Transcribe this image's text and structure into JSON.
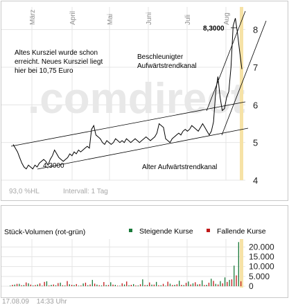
{
  "chart_data": [
    {
      "type": "line",
      "title": "",
      "months": [
        "März",
        "April",
        "Mai",
        "Juni",
        "Juli",
        "Aug"
      ],
      "ylim": [
        4,
        8.6
      ],
      "y_ticks": [
        "4",
        "5",
        "6",
        "7",
        "8"
      ],
      "grid": true,
      "watermark": ".comdirect",
      "series": [
        {
          "values": [
            4.95,
            4.85,
            4.75,
            4.6,
            4.45,
            4.35,
            4.3,
            4.4,
            4.35,
            4.3,
            4.4,
            4.35,
            4.45,
            4.5,
            4.55,
            4.5,
            4.4,
            4.55,
            4.65,
            4.8,
            4.7,
            4.6,
            4.55,
            4.5,
            4.55,
            4.6,
            4.7,
            4.65,
            4.75,
            4.7,
            4.8,
            4.75,
            4.8,
            4.85,
            4.9,
            4.85,
            5.35,
            5.45,
            5.2,
            5.15,
            5.1,
            5.0,
            4.95,
            5.05,
            5.0,
            4.95,
            5.0,
            5.1,
            5.05,
            5.0,
            5.05,
            5.0,
            5.1,
            5.05,
            5.0,
            5.05,
            5.1,
            5.05,
            5.0,
            5.05,
            5.1,
            5.15,
            5.1,
            5.05,
            5.1,
            5.15,
            5.25,
            5.5,
            5.45,
            5.4,
            5.1,
            5.05,
            5.0,
            5.1,
            5.15,
            5.2,
            5.25,
            5.2,
            5.3,
            5.35,
            5.3,
            5.35,
            5.45,
            5.4,
            5.35,
            5.3,
            5.4,
            5.5,
            5.4,
            5.3,
            5.2,
            5.3,
            5.55,
            6.35,
            6.75,
            6.2,
            5.85,
            5.9,
            6.2,
            6.35,
            7.0,
            8.1,
            8.3,
            7.9,
            7.4,
            6.95
          ]
        }
      ],
      "annotations": {
        "low_label": "4,3000",
        "high_label": "8,3000",
        "note_lines": [
          "Altes Kursziel wurde schon",
          "erreicht. Neues Kursziel liegt",
          "hier bei 10,75 Euro"
        ],
        "upper_channel_lines": [
          "Beschleunigter",
          "Aufwärtstrendkanal"
        ],
        "lower_channel_label": "Alter Aufwärtstrendkanal"
      },
      "info": {
        "hl_label": "93,0 %HL",
        "interval_label": "Intervall: 1 Tag"
      }
    },
    {
      "type": "bar",
      "title": "Stück-Volumen (rot-grün)",
      "ylim": [
        0,
        24000
      ],
      "y_ticks": [
        "0",
        "5.000",
        "10.000",
        "15.000",
        "20.000"
      ],
      "legend": {
        "rising_label": "Steigende Kurse",
        "falling_label": "Fallende Kurse",
        "position": "top-right"
      },
      "series": [
        {
          "name": "Steigende Kurse",
          "values": [
            300,
            0,
            800,
            0,
            1200,
            0,
            600,
            0,
            1500,
            0,
            400,
            0,
            900,
            0,
            300,
            0,
            2500,
            0,
            700,
            0,
            500,
            0,
            1800,
            0,
            400,
            0,
            1000,
            0,
            600,
            0,
            300,
            0,
            1400,
            0,
            500,
            0,
            3200,
            0,
            800,
            0,
            400,
            0,
            600,
            0,
            2000,
            0,
            700,
            0,
            300,
            0,
            900,
            0,
            500,
            0,
            1100,
            0,
            400,
            0,
            3500,
            0,
            600,
            0,
            800,
            0,
            2200,
            0,
            500,
            0,
            300,
            0,
            1300,
            0,
            700,
            0,
            2800,
            0,
            600,
            0,
            2400,
            0,
            1500,
            0,
            900,
            0,
            3000,
            0,
            700,
            0,
            3800,
            0,
            1200,
            0,
            2600,
            0,
            4500,
            0,
            3200,
            0,
            10500,
            0,
            22500,
            0
          ]
        },
        {
          "name": "Fallende Kurse",
          "values": [
            0,
            700,
            0,
            1200,
            0,
            500,
            0,
            1900,
            0,
            800,
            0,
            600,
            0,
            1400,
            0,
            2200,
            0,
            400,
            0,
            900,
            0,
            1600,
            0,
            500,
            0,
            2600,
            0,
            700,
            0,
            1100,
            0,
            400,
            0,
            1800,
            0,
            900,
            0,
            1300,
            0,
            500,
            0,
            2100,
            0,
            600,
            0,
            800,
            0,
            300,
            0,
            1500,
            0,
            2400,
            0,
            700,
            0,
            400,
            0,
            1000,
            0,
            600,
            0,
            1900,
            0,
            800,
            0,
            500,
            0,
            1200,
            0,
            2300,
            0,
            600,
            0,
            1000,
            0,
            700,
            0,
            1700,
            0,
            900,
            0,
            2000,
            0,
            1100,
            0,
            600,
            0,
            1800,
            0,
            2700,
            0,
            900,
            0,
            1500,
            0,
            2200,
            0,
            3500,
            0,
            5500,
            0,
            2500,
            0,
            6500
          ]
        }
      ]
    }
  ],
  "footer": {
    "date": "17.08.09",
    "time": "14:33 Uhr"
  },
  "colors": {
    "rising": "#1a7a3a",
    "falling": "#c01818",
    "line": "#000000",
    "grid": "#e4e4e4",
    "highlight": "#f6e2a6"
  }
}
